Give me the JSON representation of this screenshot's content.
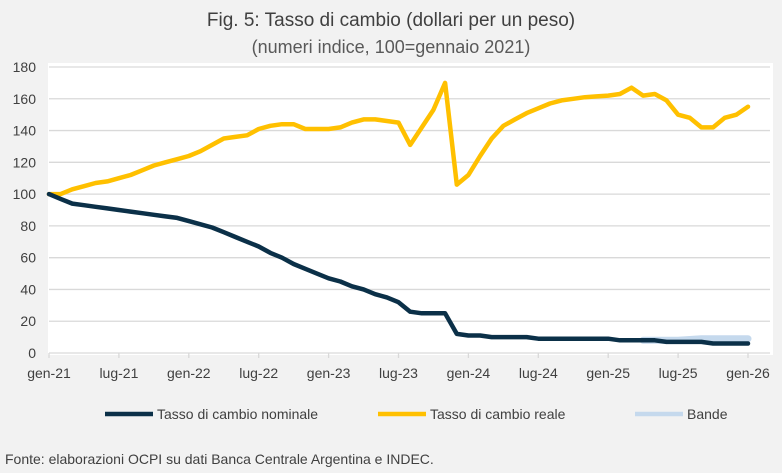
{
  "chart_data": {
    "type": "line",
    "title": "Fig. 5: Tasso di cambio (dollari per un peso)",
    "subtitle": "(numeri indice, 100=gennaio 2021)",
    "x_tick_labels": [
      "gen-21",
      "lug-21",
      "gen-22",
      "lug-22",
      "gen-23",
      "lug-23",
      "gen-24",
      "lug-24",
      "gen-25",
      "lug-25",
      "gen-26"
    ],
    "x_start": "gen-21",
    "frequency": "monthly",
    "ylim": [
      0,
      180
    ],
    "y_ticks": [
      0,
      20,
      40,
      60,
      80,
      100,
      120,
      140,
      160,
      180
    ],
    "grid": true,
    "legend_placement": "bottom",
    "series": [
      {
        "name": "Tasso di cambio nominale",
        "color": "#0b3048",
        "values": [
          100,
          97,
          94,
          93,
          92,
          91,
          90,
          89,
          88,
          87,
          86,
          85,
          83,
          81,
          79,
          76,
          73,
          70,
          67,
          63,
          60,
          56,
          53,
          50,
          47,
          45,
          42,
          40,
          37,
          35,
          32,
          26,
          25,
          25,
          25,
          12,
          11,
          11,
          10,
          10,
          10,
          10,
          9,
          9,
          9,
          9,
          9,
          9,
          9,
          8,
          8,
          8,
          8,
          7,
          7,
          7,
          7,
          6,
          6,
          6,
          6
        ]
      },
      {
        "name": "Tasso di cambio reale",
        "color": "#ffc000",
        "values": [
          100,
          100,
          103,
          105,
          107,
          108,
          110,
          112,
          115,
          118,
          120,
          122,
          124,
          127,
          131,
          135,
          136,
          137,
          141,
          143,
          144,
          144,
          141,
          141,
          141,
          142,
          145,
          147,
          147,
          146,
          145,
          131,
          142,
          153,
          170,
          106,
          112,
          124,
          135,
          143,
          147,
          151,
          154,
          157,
          159,
          160,
          161,
          161.5,
          162,
          163,
          167,
          162,
          163,
          159,
          150,
          148,
          142,
          142,
          148,
          150,
          155
        ]
      },
      {
        "name": "Bande",
        "color": "#c5d9ed",
        "values": [
          null,
          null,
          null,
          null,
          null,
          null,
          null,
          null,
          null,
          null,
          null,
          null,
          null,
          null,
          null,
          null,
          null,
          null,
          null,
          null,
          null,
          null,
          null,
          null,
          null,
          null,
          null,
          null,
          null,
          null,
          null,
          null,
          null,
          null,
          null,
          null,
          null,
          null,
          null,
          null,
          null,
          null,
          null,
          null,
          null,
          null,
          null,
          null,
          null,
          null,
          null,
          8,
          8,
          8,
          8,
          8.5,
          9,
          9,
          9,
          9,
          9
        ]
      }
    ]
  },
  "footnote": "Fonte: elaborazioni OCPI su dati Banca Centrale Argentina e INDEC."
}
